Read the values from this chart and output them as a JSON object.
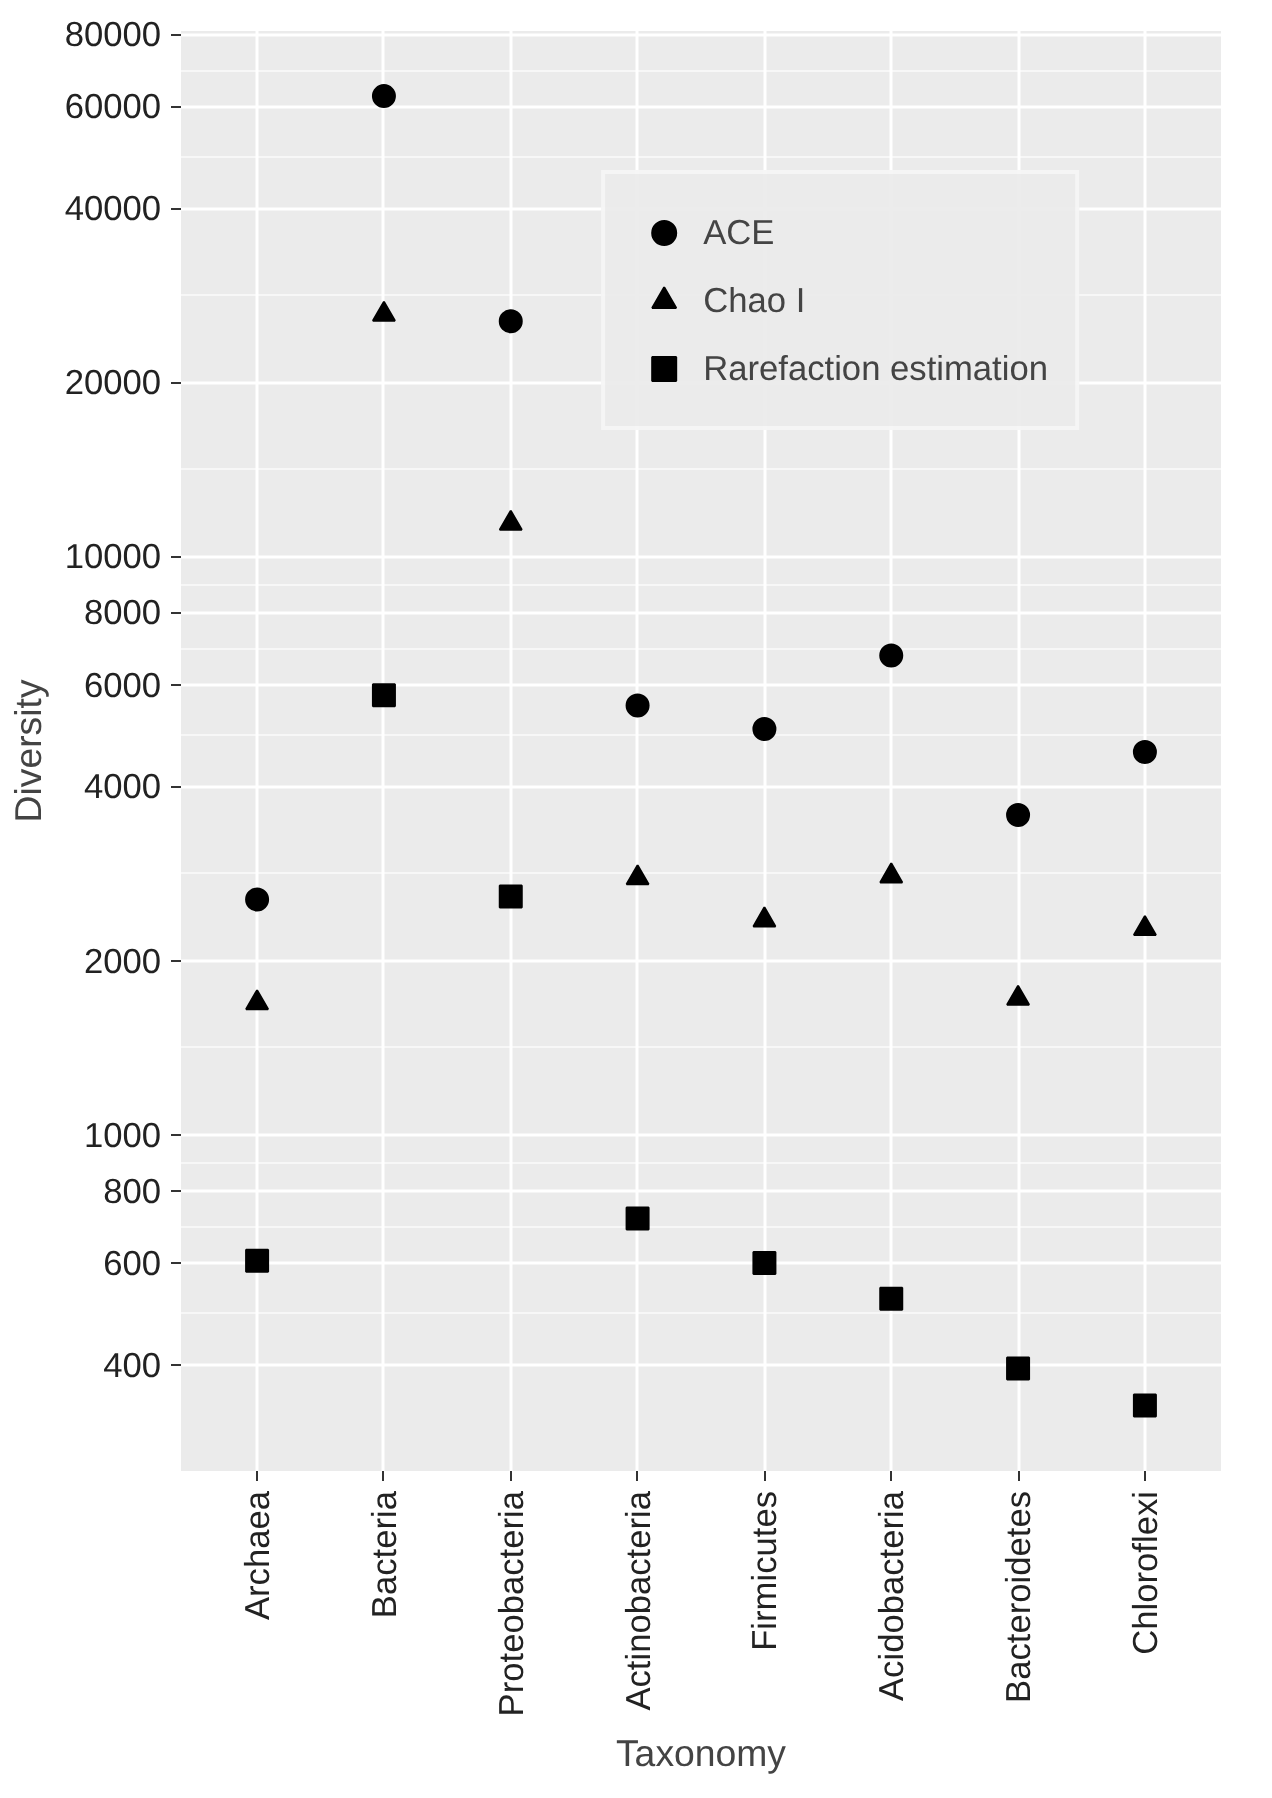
{
  "chart_data": {
    "type": "scatter",
    "xlabel": "Taxonomy",
    "ylabel": "Diversity",
    "categories": [
      "Archaea",
      "Bacteria",
      "Proteobacteria",
      "Actinobacteria",
      "Firmicutes",
      "Acidobacteria",
      "Bacteroidetes",
      "Chloroflexi"
    ],
    "series": [
      {
        "name": "ACE",
        "color": "#000000",
        "marker": "circle",
        "values": [
          2550,
          62500,
          25500,
          5520,
          5030,
          6740,
          3570,
          4590
        ]
      },
      {
        "name": "Chao I",
        "color": "#000000",
        "marker": "triangle",
        "values": [
          1690,
          26200,
          11400,
          2780,
          2350,
          2800,
          1720,
          2270
        ]
      },
      {
        "name": "Rarefaction estimation",
        "color": "#000000",
        "marker": "square",
        "values": [
          605,
          5750,
          2580,
          716,
          600,
          520,
          394,
          340
        ]
      }
    ],
    "log": "y",
    "ylim": [
      262,
      81000
    ],
    "yticks": [
      400,
      600,
      800,
      1000,
      2000,
      4000,
      6000,
      8000,
      10000,
      20000,
      40000,
      60000,
      80000
    ],
    "grid": true,
    "legend": "top right"
  }
}
